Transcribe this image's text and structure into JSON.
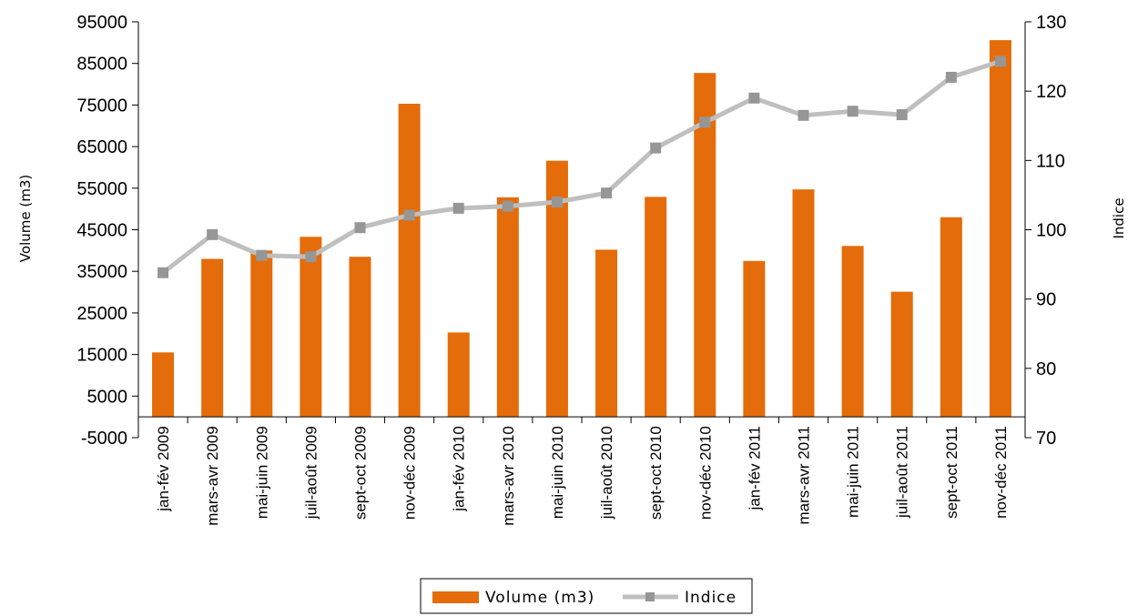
{
  "chart_data": {
    "type": "bar",
    "categories": [
      "jan-fév 2009",
      "mars-avr 2009",
      "mai-juin 2009",
      "juil-août 2009",
      "sept-oct 2009",
      "nov-déc 2009",
      "jan-fév 2010",
      "mars-avr 2010",
      "mai-juin 2010",
      "juil-août 2010",
      "sept-oct 2010",
      "nov-déc 2010",
      "jan-fév 2011",
      "mars-avr 2011",
      "mai-juin 2011",
      "juil-août 2011",
      "sept-oct 2011",
      "nov-déc 2011"
    ],
    "series": [
      {
        "name": "Volume (m3)",
        "type": "bar",
        "axis": "left",
        "color": "#E46C0A",
        "values": [
          15500,
          38000,
          40000,
          43300,
          38500,
          75300,
          20300,
          52800,
          61600,
          40200,
          52900,
          82700,
          37500,
          54700,
          41100,
          30100,
          48000,
          90600
        ]
      },
      {
        "name": "Indice",
        "type": "line",
        "axis": "right",
        "color": "#BFBFBF",
        "marker_color": "#969696",
        "values": [
          93.8,
          99.3,
          96.3,
          96.1,
          100.3,
          102.1,
          103.1,
          103.4,
          104.0,
          105.3,
          111.8,
          115.5,
          119.0,
          116.5,
          117.1,
          116.6,
          122.0,
          124.3
        ]
      }
    ],
    "ylabel": "Volume (m3)",
    "y2label": "Indice",
    "ylim": [
      -5000,
      95000
    ],
    "y_ticks": [
      -5000,
      5000,
      15000,
      25000,
      35000,
      45000,
      55000,
      65000,
      75000,
      85000,
      95000
    ],
    "y2lim": [
      70,
      130
    ],
    "y2_ticks": [
      70,
      80,
      90,
      100,
      110,
      120,
      130
    ],
    "x_axis_at": 0,
    "grid": false,
    "legend": "bottom"
  }
}
